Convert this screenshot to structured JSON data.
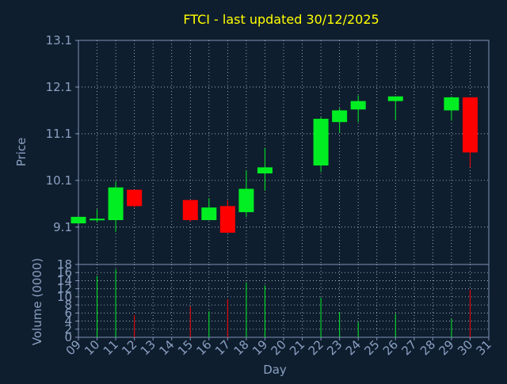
{
  "colors": {
    "background": "#0f1e2e",
    "axis": "#7f93b8",
    "text": "#8aa0c2",
    "title": "#ffff00",
    "up": "#00ee22",
    "down": "#ff0000",
    "grid": "#b8c4d8"
  },
  "chart_data": [
    {
      "type": "candlestick",
      "title": "FTCI - last updated 30/12/2025",
      "ylabel": "Price",
      "xlabel": "",
      "ylim": [
        8.3,
        13.1
      ],
      "yticks": [
        9.1,
        10.1,
        11.1,
        12.1,
        13.1
      ],
      "grid": true,
      "candles": [
        {
          "day": 9,
          "open": 9.18,
          "high": 9.32,
          "low": 9.18,
          "close": 9.32
        },
        {
          "day": 10,
          "open": 9.25,
          "high": 9.48,
          "low": 9.2,
          "close": 9.28
        },
        {
          "day": 11,
          "open": 9.25,
          "high": 10.08,
          "low": 9.0,
          "close": 9.95
        },
        {
          "day": 12,
          "open": 9.9,
          "high": 9.9,
          "low": 9.52,
          "close": 9.55
        },
        {
          "day": 15,
          "open": 9.68,
          "high": 9.68,
          "low": 9.22,
          "close": 9.25
        },
        {
          "day": 16,
          "open": 9.25,
          "high": 9.72,
          "low": 9.25,
          "close": 9.52
        },
        {
          "day": 17,
          "open": 9.55,
          "high": 9.68,
          "low": 8.98,
          "close": 8.98
        },
        {
          "day": 18,
          "open": 9.42,
          "high": 10.32,
          "low": 9.32,
          "close": 9.92
        },
        {
          "day": 19,
          "open": 10.25,
          "high": 10.8,
          "low": 9.88,
          "close": 10.38
        },
        {
          "day": 22,
          "open": 10.42,
          "high": 11.45,
          "low": 10.28,
          "close": 11.42
        },
        {
          "day": 23,
          "open": 11.35,
          "high": 11.65,
          "low": 11.12,
          "close": 11.6
        },
        {
          "day": 24,
          "open": 11.62,
          "high": 11.92,
          "low": 11.35,
          "close": 11.8
        },
        {
          "day": 26,
          "open": 11.8,
          "high": 11.9,
          "low": 11.4,
          "close": 11.9
        },
        {
          "day": 29,
          "open": 11.6,
          "high": 11.9,
          "low": 11.38,
          "close": 11.88
        },
        {
          "day": 30,
          "open": 11.88,
          "high": 11.88,
          "low": 10.38,
          "close": 10.7
        }
      ]
    },
    {
      "type": "bar",
      "ylabel": "Volume (0000)",
      "xlabel": "Day",
      "ylim": [
        0,
        18
      ],
      "yticks": [
        0,
        2,
        4,
        6,
        8,
        10,
        12,
        14,
        16,
        18
      ],
      "categories": [
        "09",
        "10",
        "11",
        "12",
        "13",
        "14",
        "15",
        "16",
        "17",
        "18",
        "19",
        "20",
        "21",
        "22",
        "23",
        "24",
        "25",
        "26",
        "27",
        "28",
        "29",
        "30",
        "31"
      ],
      "volumes": [
        {
          "day": 10,
          "value": 15.2,
          "dir": "up"
        },
        {
          "day": 11,
          "value": 16.8,
          "dir": "up"
        },
        {
          "day": 12,
          "value": 5.5,
          "dir": "down"
        },
        {
          "day": 15,
          "value": 7.6,
          "dir": "down"
        },
        {
          "day": 16,
          "value": 6.4,
          "dir": "up"
        },
        {
          "day": 17,
          "value": 9.4,
          "dir": "down"
        },
        {
          "day": 18,
          "value": 13.6,
          "dir": "up"
        },
        {
          "day": 19,
          "value": 12.8,
          "dir": "up"
        },
        {
          "day": 22,
          "value": 9.8,
          "dir": "up"
        },
        {
          "day": 23,
          "value": 6.2,
          "dir": "up"
        },
        {
          "day": 24,
          "value": 3.8,
          "dir": "up"
        },
        {
          "day": 26,
          "value": 5.8,
          "dir": "up"
        },
        {
          "day": 29,
          "value": 4.6,
          "dir": "up"
        },
        {
          "day": 30,
          "value": 11.8,
          "dir": "down"
        }
      ]
    }
  ]
}
